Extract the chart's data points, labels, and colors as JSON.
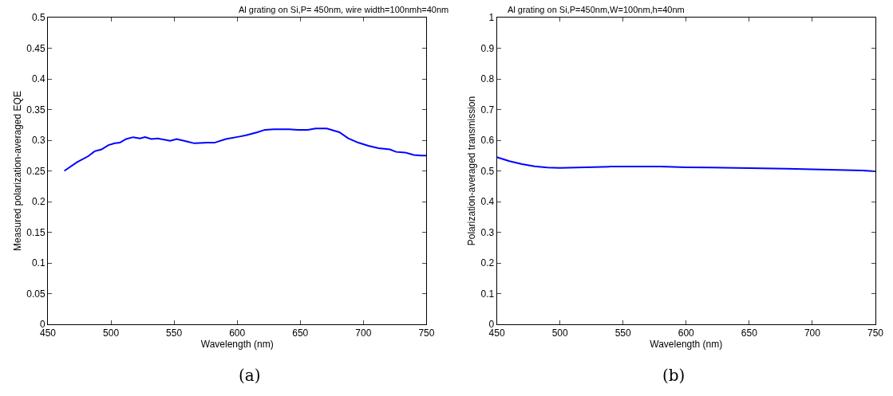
{
  "chart_data": [
    {
      "type": "line",
      "title": "Al grating on Si,P= 450nm, wire width=100nmh=40nm",
      "xlabel": "Wavelength (nm)",
      "ylabel": "Measured polarization-averaged EQE",
      "annotations": [
        "(a)"
      ],
      "x": [
        463,
        473,
        482,
        487,
        492.5,
        498,
        503,
        507,
        512,
        517.5,
        523,
        527,
        532,
        537,
        547,
        552,
        560,
        566,
        576,
        582,
        591,
        602,
        607,
        616,
        622,
        629,
        641,
        648,
        656,
        662,
        671,
        681,
        688,
        696,
        704,
        712,
        721,
        726,
        733,
        740,
        746,
        750
      ],
      "series": [
        {
          "color": "#0000ff",
          "values": [
            0.25,
            0.264,
            0.274,
            0.282,
            0.285,
            0.292,
            0.295,
            0.296,
            0.302,
            0.305,
            0.303,
            0.305,
            0.302,
            0.303,
            0.299,
            0.302,
            0.298,
            0.295,
            0.296,
            0.296,
            0.302,
            0.306,
            0.308,
            0.313,
            0.317,
            0.318,
            0.318,
            0.317,
            0.317,
            0.319,
            0.319,
            0.313,
            0.303,
            0.296,
            0.291,
            0.287,
            0.285,
            0.281,
            0.28,
            0.276,
            0.275,
            0.275
          ]
        }
      ],
      "xlim": [
        450,
        750
      ],
      "xticks": [
        450,
        500,
        550,
        600,
        650,
        700,
        750
      ],
      "ylim": [
        0,
        0.5
      ],
      "yticks": [
        0,
        0.05,
        0.1,
        0.15,
        0.2,
        0.25,
        0.3,
        0.35,
        0.4,
        0.45,
        0.5
      ],
      "marker": "none",
      "line_style": "solid"
    },
    {
      "type": "line",
      "title": "Al grating on Si,P=450nm,W=100nm,h=40nm",
      "xlabel": "Wavelength (nm)",
      "ylabel": "Polarization-averaged transmission",
      "annotations": [
        "(b)"
      ],
      "x": [
        450,
        460,
        470,
        480,
        490,
        500,
        520,
        540,
        560,
        580,
        600,
        620,
        650,
        680,
        700,
        720,
        740,
        750
      ],
      "series": [
        {
          "color": "#0000ff",
          "values": [
            0.545,
            0.532,
            0.522,
            0.515,
            0.511,
            0.51,
            0.512,
            0.514,
            0.514,
            0.514,
            0.512,
            0.511,
            0.509,
            0.507,
            0.505,
            0.503,
            0.501,
            0.499
          ]
        }
      ],
      "xlim": [
        450,
        750
      ],
      "xticks": [
        450,
        500,
        550,
        600,
        650,
        700,
        750
      ],
      "ylim": [
        0,
        1
      ],
      "yticks": [
        0,
        0.1,
        0.2,
        0.3,
        0.4,
        0.5,
        0.6,
        0.7,
        0.8,
        0.9,
        1
      ],
      "marker": "none",
      "line_style": "solid"
    }
  ]
}
